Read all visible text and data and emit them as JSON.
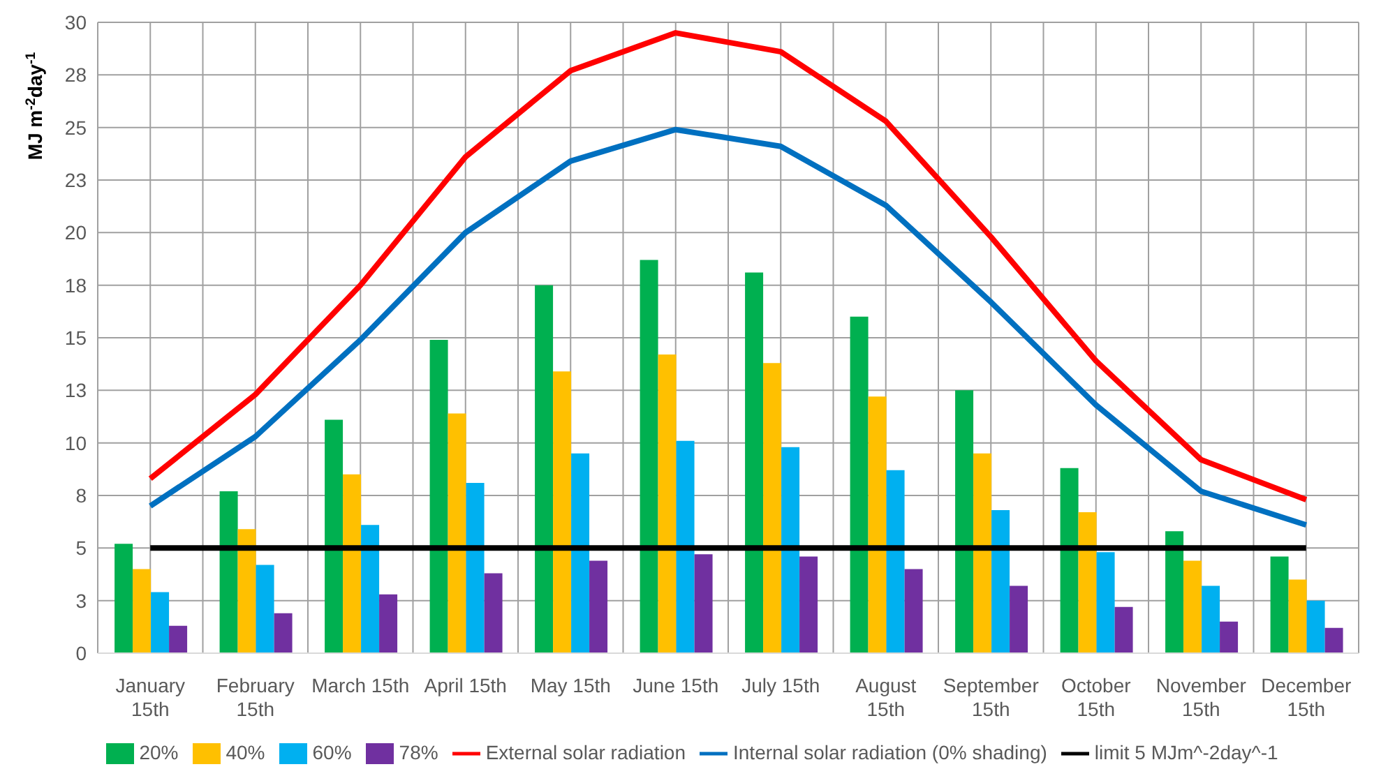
{
  "chart_data": {
    "type": "bar",
    "ylabel": "MJ m$^{-2}$day$^{-1}$",
    "categories": [
      "January 15th",
      "February 15th",
      "March 15th",
      "April 15th",
      "May 15th",
      "June 15th",
      "July 15th",
      "August 15th",
      "September 15th",
      "October 15th",
      "November 15th",
      "December 15th"
    ],
    "series": [
      {
        "name": "20%",
        "color": "#00b050",
        "values": [
          5.2,
          7.7,
          11.1,
          14.9,
          17.5,
          18.7,
          18.1,
          16.0,
          12.5,
          8.8,
          5.8,
          4.6
        ]
      },
      {
        "name": "40%",
        "color": "#ffc000",
        "values": [
          4.0,
          5.9,
          8.5,
          11.4,
          13.4,
          14.2,
          13.8,
          12.2,
          9.5,
          6.7,
          4.4,
          3.5
        ]
      },
      {
        "name": "60%",
        "color": "#00b0f0",
        "values": [
          2.9,
          4.2,
          6.1,
          8.1,
          9.5,
          10.1,
          9.8,
          8.7,
          6.8,
          4.8,
          3.2,
          2.5
        ]
      },
      {
        "name": "78%",
        "color": "#7030a0",
        "values": [
          1.3,
          1.9,
          2.8,
          3.8,
          4.4,
          4.7,
          4.6,
          4.0,
          3.2,
          2.2,
          1.5,
          1.2
        ]
      },
      {
        "name": "External solar radiation",
        "type": "line",
        "color": "#ff0000",
        "values": [
          8.3,
          12.3,
          17.5,
          23.6,
          27.7,
          29.5,
          28.6,
          25.3,
          19.8,
          13.9,
          9.2,
          7.3
        ]
      },
      {
        "name": "Internal solar radiation (0% shading)",
        "type": "line",
        "color": "#0070c0",
        "values": [
          7.0,
          10.3,
          14.9,
          20.0,
          23.4,
          24.9,
          24.1,
          21.3,
          16.7,
          11.8,
          7.7,
          6.1
        ]
      },
      {
        "name": "limit 5 MJm^-2day^-1",
        "type": "line",
        "color": "#000000",
        "values": [
          5,
          5,
          5,
          5,
          5,
          5,
          5,
          5,
          5,
          5,
          5,
          5
        ]
      }
    ],
    "ylim": [
      0,
      30
    ],
    "yticks": [
      0,
      {
        "value": 2.5,
        "label": "3"
      },
      5,
      {
        "value": 7.5,
        "label": "8"
      },
      10,
      {
        "value": 12.5,
        "label": "13"
      },
      15,
      {
        "value": 17.5,
        "label": "18"
      },
      20,
      {
        "value": 22.5,
        "label": "23"
      },
      25,
      {
        "value": 27.5,
        "label": "28"
      },
      30
    ],
    "grid": true,
    "legend": "bottom",
    "marker": "none",
    "line_style": "solid"
  }
}
